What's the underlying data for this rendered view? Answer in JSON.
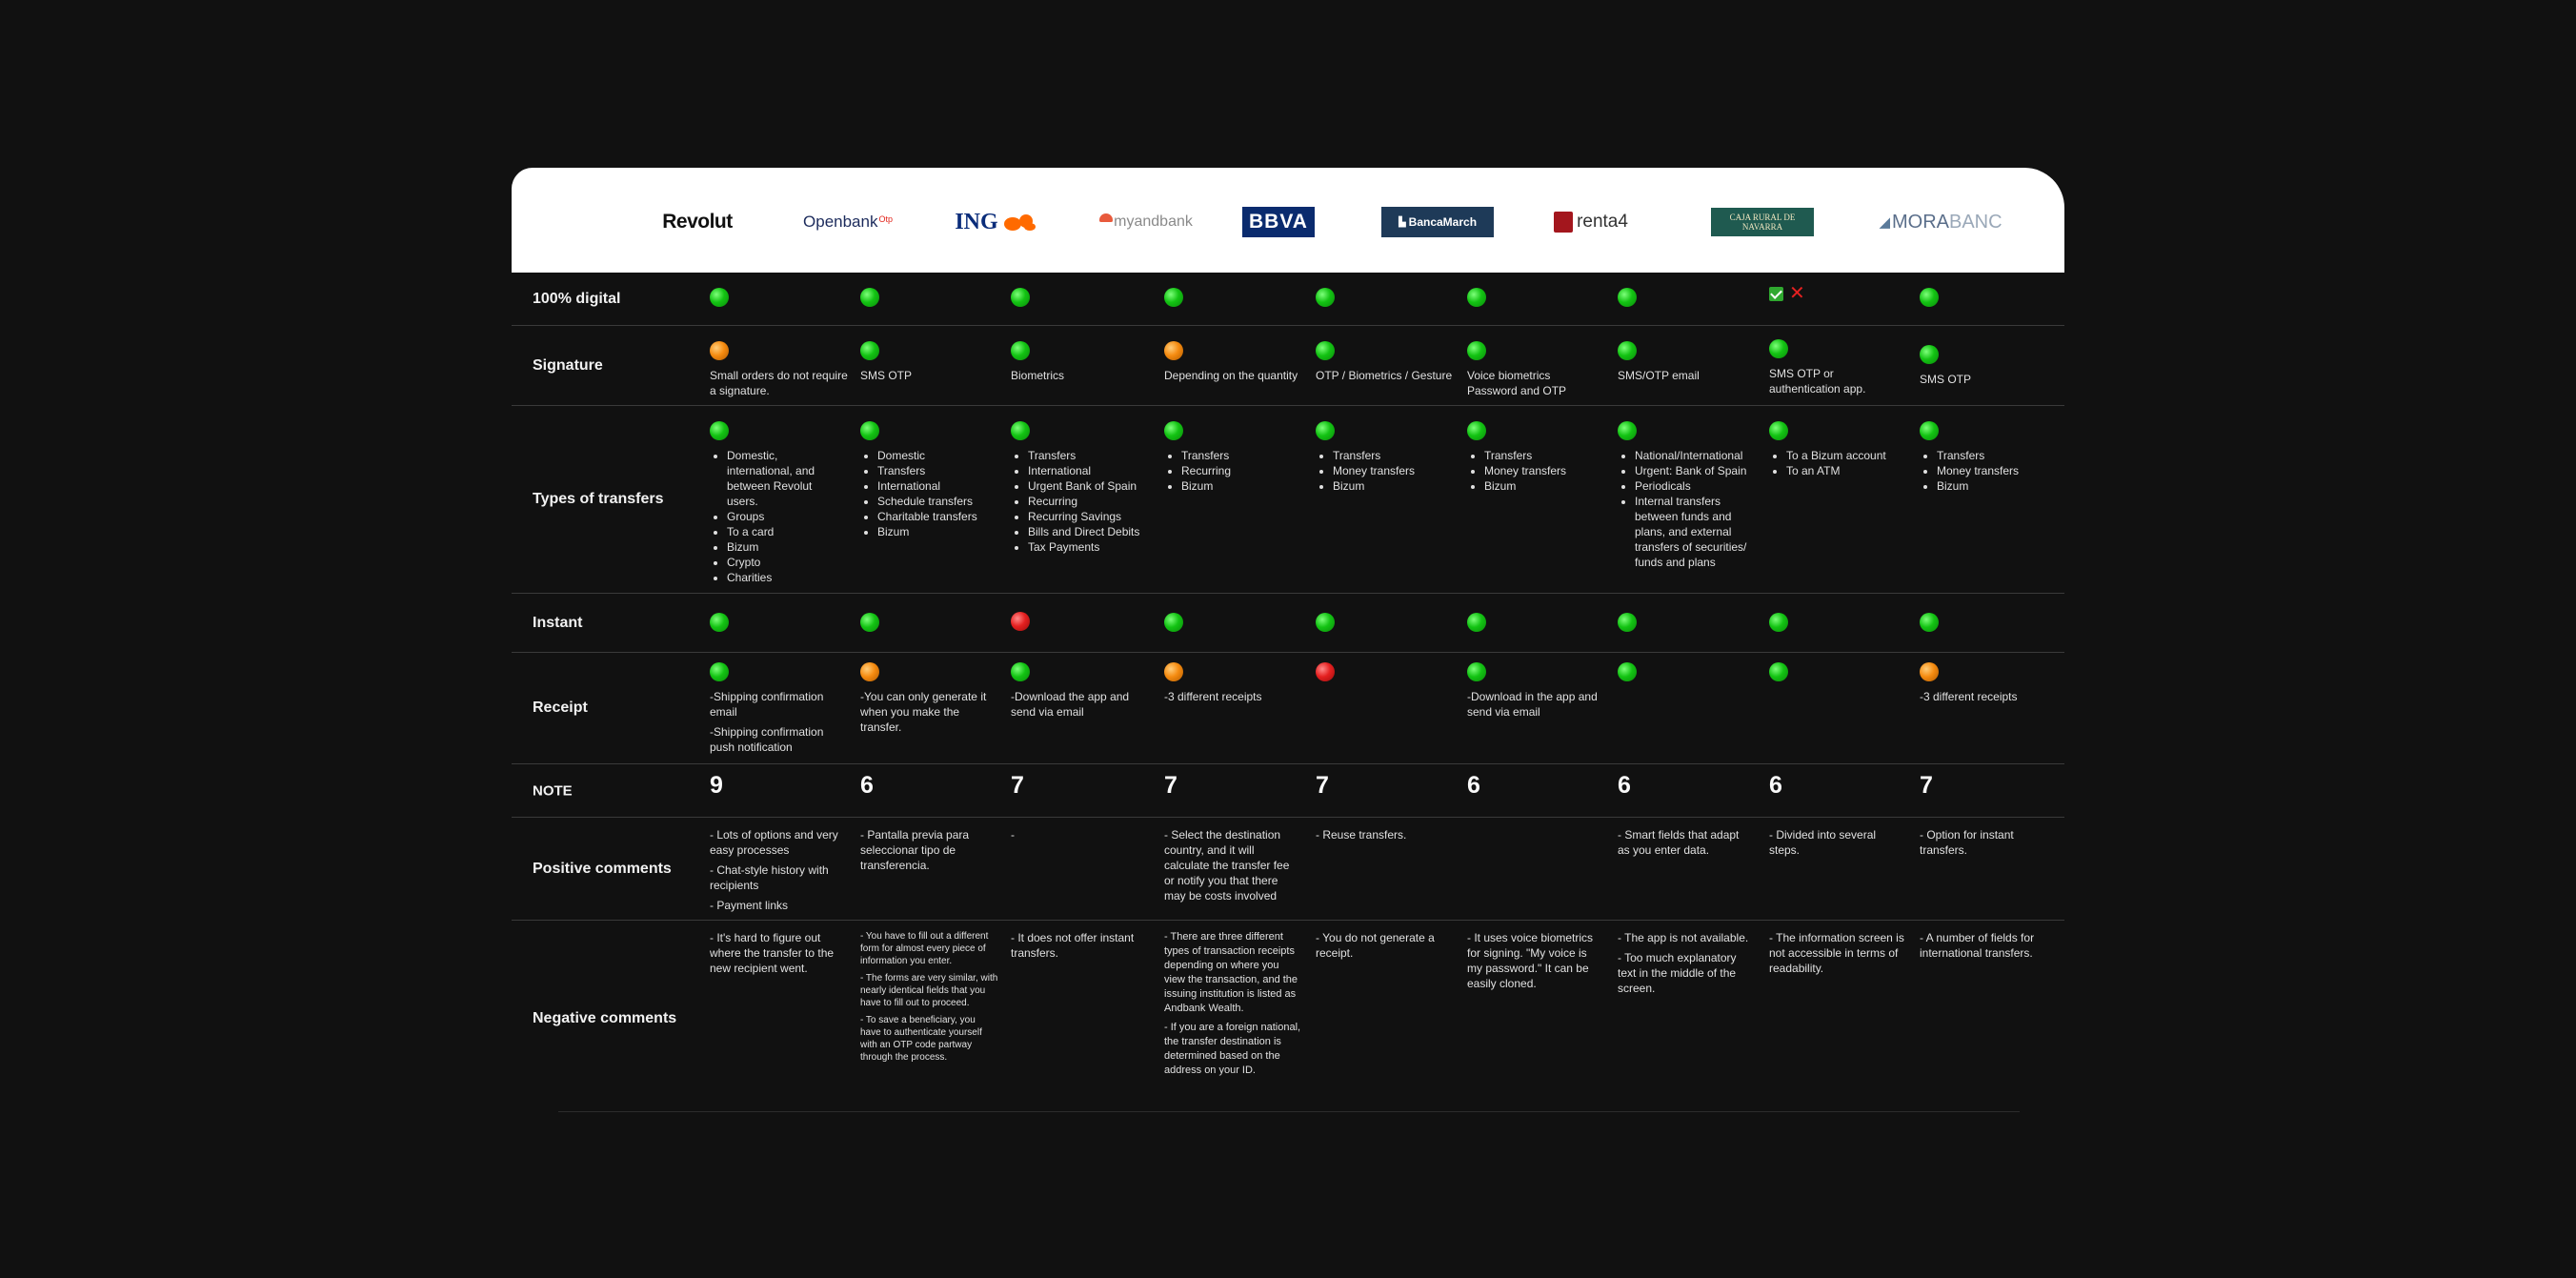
{
  "banks": [
    {
      "name": "Revolut"
    },
    {
      "name": "Openbank",
      "suffix": "Otp"
    },
    {
      "name": "ING"
    },
    {
      "name": "myandbank"
    },
    {
      "name": "BBVA"
    },
    {
      "name": "BancaMarch"
    },
    {
      "name": "renta4"
    },
    {
      "name": "CAJA RURAL DE NAVARRA"
    },
    {
      "name": "MORA",
      "suffix": "BANC"
    }
  ],
  "rows": {
    "digital": {
      "label": "100% digital",
      "status": [
        "green",
        "green",
        "green",
        "green",
        "green",
        "green",
        "green",
        "check-cross",
        "green"
      ]
    },
    "signature": {
      "label": "Signature",
      "status": [
        "orange",
        "green",
        "green",
        "orange",
        "green",
        "green",
        "green",
        "green",
        "green"
      ],
      "text": [
        "Small orders do not require a signature.",
        "SMS OTP",
        "Biometrics",
        "Depending on the quantity",
        "OTP / Biometrics / Gesture",
        "Voice biometrics Password and OTP",
        "SMS/OTP email",
        "SMS OTP or authentication app.",
        "SMS OTP"
      ]
    },
    "types": {
      "label": "Types of transfers",
      "status": [
        "green",
        "green",
        "green",
        "green",
        "green",
        "green",
        "green",
        "green",
        "green"
      ],
      "lists": [
        [
          "Domestic, international, and between Revolut users.",
          "Groups",
          "To a card",
          "Bizum",
          "Crypto",
          "Charities"
        ],
        [
          "Domestic",
          "Transfers",
          "International",
          "Schedule transfers",
          "Charitable transfers",
          "Bizum"
        ],
        [
          "Transfers",
          "International",
          "Urgent Bank of Spain",
          "Recurring",
          "Recurring Savings",
          "Bills and Direct Debits",
          "Tax Payments"
        ],
        [
          "Transfers",
          "Recurring",
          "Bizum"
        ],
        [
          "Transfers",
          "Money transfers",
          "Bizum"
        ],
        [
          "Transfers",
          "Money transfers",
          "Bizum"
        ],
        [
          "National/International",
          "Urgent: Bank of Spain",
          "Periodicals",
          "Internal transfers between funds and plans, and external transfers of securities/ funds and plans"
        ],
        [
          "To a Bizum account",
          "To an ATM"
        ],
        [
          "Transfers",
          "Money transfers",
          "Bizum"
        ]
      ]
    },
    "instant": {
      "label": "Instant",
      "status": [
        "green",
        "green",
        "red",
        "green",
        "green",
        "green",
        "green",
        "green",
        "green"
      ]
    },
    "receipt": {
      "label": "Receipt",
      "status": [
        "green",
        "orange",
        "green",
        "orange",
        "red",
        "green",
        "green",
        "green",
        "orange"
      ],
      "text": [
        [
          "-Shipping confirmation email",
          "-Shipping confirmation push notification"
        ],
        [
          "-You can only generate it when you make the transfer."
        ],
        [
          "-Download the app and send via email"
        ],
        [
          "-3 different receipts"
        ],
        [],
        [
          "-Download in the app and send via email"
        ],
        [],
        [],
        [
          "-3 different receipts"
        ]
      ]
    },
    "note": {
      "label": "NOTE",
      "scores": [
        "9",
        "6",
        "7",
        "7",
        "7",
        "6",
        "6",
        "6",
        "7"
      ]
    },
    "positive": {
      "label": "Positive comments",
      "text": [
        [
          "- Lots of options and very easy processes",
          "- Chat-style history with recipients",
          "- Payment links"
        ],
        [
          "- Pantalla previa para seleccionar tipo de transferencia."
        ],
        [
          "-"
        ],
        [
          "- Select the destination country, and it will calculate the transfer fee or notify you that there may be costs involved"
        ],
        [
          "- Reuse transfers."
        ],
        [],
        [
          "- Smart fields that adapt as you enter data."
        ],
        [
          "- Divided into several steps."
        ],
        [
          "- Option for instant transfers."
        ]
      ]
    },
    "negative": {
      "label": "Negative comments",
      "text": [
        [
          "- It's hard to figure out where the transfer to the new recipient went."
        ],
        [
          "- You have to fill out a different form for almost every piece of information you enter.",
          "- The forms are very similar, with nearly identical fields that you have to fill out to proceed.",
          "- To save a beneficiary, you have to authenticate yourself with an OTP code partway through the process."
        ],
        [
          "- It does not offer instant transfers."
        ],
        [
          "- There are three different types of transaction receipts depending on where you view the transaction, and the issuing institution is listed as Andbank Wealth.",
          "- If you are a foreign national, the transfer destination is determined based on the address on your ID."
        ],
        [
          "- You do not generate a receipt."
        ],
        [
          "- It uses voice biometrics for signing. \"My voice is my password.\" It can be easily cloned."
        ],
        [
          "- The app is not available.",
          "- Too much explanatory text in the middle of the screen."
        ],
        [
          "- The information screen is not accessible in terms of readability."
        ],
        [
          "- A number of fields for international transfers."
        ]
      ]
    }
  }
}
